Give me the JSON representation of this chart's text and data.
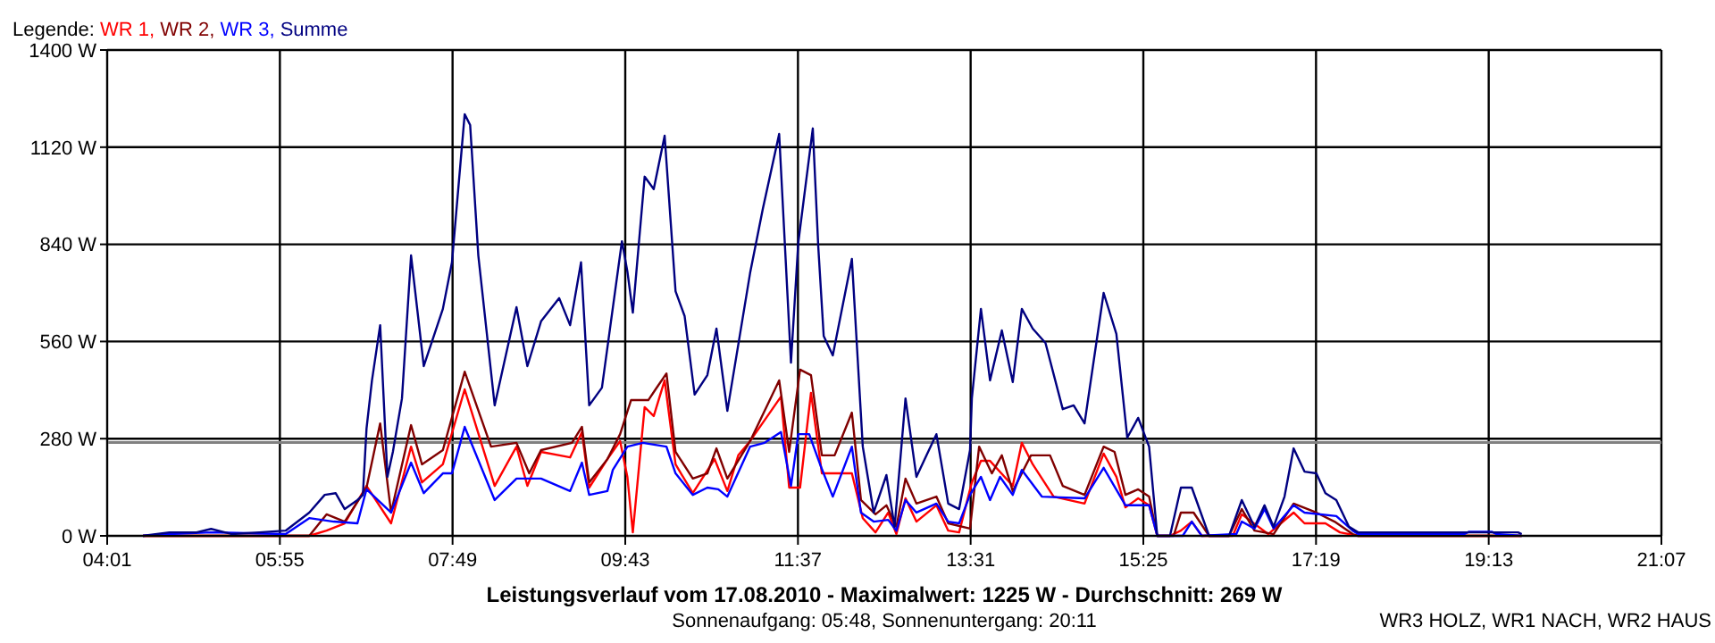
{
  "chart_data": {
    "type": "line",
    "title": "Leistungsverlauf vom 17.08.2010 - Maximalwert: 1225 W - Durchschnitt: 269 W",
    "subtitle": "Sonnenaufgang: 05:48, Sonnenuntergang: 20:11",
    "annotations": [
      "WR3 HOLZ, WR1 NACH, WR2 HAUS"
    ],
    "legend_title": "Legende:",
    "legend": "top left",
    "grid": true,
    "line_style": "solid",
    "xlim": [
      4.0167,
      21.1167
    ],
    "xticks": [
      {
        "value": 4.0167,
        "label": "04:01"
      },
      {
        "value": 5.9167,
        "label": "05:55"
      },
      {
        "value": 7.8167,
        "label": "07:49"
      },
      {
        "value": 9.7167,
        "label": "09:43"
      },
      {
        "value": 11.6167,
        "label": "11:37"
      },
      {
        "value": 13.5167,
        "label": "13:31"
      },
      {
        "value": 15.4167,
        "label": "15:25"
      },
      {
        "value": 17.3167,
        "label": "17:19"
      },
      {
        "value": 19.2167,
        "label": "19:13"
      },
      {
        "value": 21.1167,
        "label": "21:07"
      }
    ],
    "ylim": [
      0,
      1400
    ],
    "yticks": [
      {
        "value": 0,
        "label": "0 W"
      },
      {
        "value": 280,
        "label": "280 W"
      },
      {
        "value": 560,
        "label": "560 W"
      },
      {
        "value": 840,
        "label": "840 W"
      },
      {
        "value": 1120,
        "label": "1120 W"
      },
      {
        "value": 1400,
        "label": "1400 W"
      }
    ],
    "ref_lines": [
      {
        "axis": "y",
        "value": 269,
        "color": "#808080"
      }
    ],
    "series": [
      {
        "name": "WR 1,",
        "color": "#ff0000",
        "x": [
          4.41,
          6.24,
          6.43,
          6.63,
          6.87,
          7.14,
          7.36,
          7.48,
          7.71,
          7.95,
          8.28,
          8.52,
          8.64,
          8.79,
          9.11,
          9.24,
          9.32,
          9.52,
          9.66,
          9.74,
          9.8,
          9.93,
          10.03,
          10.15,
          10.27,
          10.46,
          10.7,
          10.84,
          10.96,
          11.09,
          11.43,
          11.52,
          11.64,
          11.76,
          11.88,
          12.21,
          12.33,
          12.47,
          12.61,
          12.7,
          12.8,
          12.92,
          13.14,
          13.27,
          13.39,
          13.53,
          13.63,
          13.73,
          13.98,
          14.08,
          14.2,
          14.43,
          14.77,
          14.98,
          15.12,
          15.22,
          15.36,
          15.48,
          15.57,
          15.71,
          15.83,
          15.95,
          16.06,
          16.4,
          16.5,
          16.79,
          17.07,
          17.19,
          17.42,
          17.58,
          17.78,
          19.58
        ],
        "values": [
          0,
          0,
          15,
          36,
          144,
          36,
          257,
          154,
          206,
          422,
          144,
          257,
          144,
          242,
          226,
          299,
          139,
          221,
          273,
          170,
          10,
          371,
          345,
          448,
          206,
          123,
          221,
          129,
          232,
          273,
          401,
          139,
          139,
          412,
          180,
          180,
          51,
          10,
          67,
          5,
          108,
          41,
          88,
          15,
          10,
          154,
          216,
          216,
          144,
          268,
          206,
          113,
          93,
          237,
          170,
          82,
          108,
          88,
          0,
          0,
          15,
          41,
          0,
          0,
          62,
          5,
          67,
          36,
          36,
          10,
          0,
          0
        ]
      },
      {
        "name": "WR 2,",
        "color": "#800000",
        "x": [
          4.41,
          6.24,
          6.43,
          6.63,
          6.87,
          7.02,
          7.14,
          7.36,
          7.48,
          7.71,
          7.95,
          8.24,
          8.52,
          8.66,
          8.79,
          9.13,
          9.24,
          9.32,
          9.52,
          9.66,
          9.78,
          9.97,
          10.05,
          10.17,
          10.27,
          10.46,
          10.62,
          10.72,
          10.84,
          11.09,
          11.41,
          11.52,
          11.64,
          11.76,
          11.88,
          12.02,
          12.21,
          12.31,
          12.47,
          12.59,
          12.7,
          12.8,
          12.92,
          13.14,
          13.27,
          13.51,
          13.61,
          13.75,
          13.86,
          13.98,
          14.18,
          14.39,
          14.53,
          14.77,
          14.98,
          15.1,
          15.22,
          15.36,
          15.48,
          15.57,
          15.75,
          15.83,
          15.97,
          16.14,
          16.36,
          16.5,
          16.64,
          16.85,
          17.07,
          17.32,
          17.52,
          17.72,
          17.78,
          19.58
        ],
        "values": [
          0,
          0,
          62,
          41,
          139,
          324,
          67,
          319,
          206,
          247,
          473,
          257,
          268,
          180,
          247,
          268,
          314,
          154,
          221,
          293,
          391,
          391,
          422,
          468,
          242,
          165,
          180,
          252,
          165,
          273,
          448,
          242,
          479,
          463,
          232,
          232,
          355,
          103,
          62,
          88,
          26,
          165,
          93,
          113,
          36,
          21,
          257,
          180,
          232,
          129,
          232,
          232,
          144,
          118,
          257,
          242,
          118,
          134,
          113,
          0,
          0,
          67,
          67,
          0,
          0,
          77,
          15,
          5,
          93,
          67,
          41,
          5,
          0,
          0
        ]
      },
      {
        "name": "WR 3,",
        "color": "#0000ff",
        "x": [
          4.41,
          4.7,
          5.16,
          5.98,
          6.24,
          6.51,
          6.77,
          6.87,
          7.14,
          7.36,
          7.5,
          7.71,
          7.81,
          7.95,
          8.28,
          8.52,
          8.79,
          9.11,
          9.24,
          9.32,
          9.52,
          9.58,
          9.74,
          9.91,
          10.17,
          10.27,
          10.46,
          10.62,
          10.74,
          10.84,
          11.09,
          11.25,
          11.43,
          11.54,
          11.62,
          11.74,
          11.86,
          12.0,
          12.21,
          12.31,
          12.45,
          12.61,
          12.7,
          12.8,
          12.92,
          13.14,
          13.27,
          13.39,
          13.51,
          13.63,
          13.73,
          13.84,
          13.98,
          14.08,
          14.3,
          14.77,
          14.98,
          15.22,
          15.48,
          15.57,
          15.85,
          15.95,
          16.06,
          16.44,
          16.5,
          16.64,
          16.75,
          16.85,
          17.07,
          17.19,
          17.54,
          17.72,
          17.78,
          18.95,
          19.0,
          19.25,
          19.3,
          19.58
        ],
        "values": [
          0,
          5,
          10,
          5,
          51,
          41,
          36,
          134,
          67,
          211,
          123,
          180,
          180,
          314,
          103,
          165,
          165,
          129,
          211,
          118,
          129,
          190,
          257,
          268,
          257,
          180,
          118,
          139,
          134,
          113,
          257,
          268,
          299,
          144,
          293,
          293,
          206,
          113,
          257,
          67,
          41,
          46,
          15,
          103,
          67,
          93,
          41,
          36,
          118,
          170,
          103,
          170,
          118,
          190,
          113,
          108,
          196,
          88,
          88,
          0,
          0,
          41,
          0,
          5,
          41,
          21,
          77,
          21,
          88,
          67,
          57,
          15,
          5,
          5,
          12,
          12,
          5,
          0
        ]
      },
      {
        "name": "Summe",
        "color": "#000080",
        "x": [
          4.41,
          4.7,
          5.0,
          5.16,
          5.39,
          5.69,
          5.98,
          6.24,
          6.41,
          6.53,
          6.63,
          6.77,
          6.83,
          6.87,
          6.93,
          7.02,
          7.1,
          7.16,
          7.26,
          7.36,
          7.5,
          7.71,
          7.81,
          7.95,
          8.01,
          8.1,
          8.28,
          8.52,
          8.64,
          8.79,
          8.99,
          9.11,
          9.23,
          9.32,
          9.46,
          9.68,
          9.74,
          9.8,
          9.93,
          10.03,
          10.15,
          10.27,
          10.37,
          10.48,
          10.62,
          10.72,
          10.84,
          11.09,
          11.23,
          11.41,
          11.54,
          11.62,
          11.78,
          11.84,
          11.9,
          12.0,
          12.21,
          12.33,
          12.45,
          12.59,
          12.68,
          12.8,
          12.92,
          13.14,
          13.27,
          13.39,
          13.51,
          13.53,
          13.63,
          13.73,
          13.86,
          13.98,
          14.08,
          14.2,
          14.34,
          14.53,
          14.65,
          14.77,
          14.98,
          15.12,
          15.24,
          15.36,
          15.48,
          15.57,
          15.71,
          15.83,
          15.95,
          16.14,
          16.36,
          16.5,
          16.64,
          16.75,
          16.85,
          16.97,
          17.07,
          17.19,
          17.32,
          17.42,
          17.54,
          17.68,
          17.78,
          19.54,
          19.58
        ],
        "values": [
          0,
          10,
          10,
          20,
          5,
          10,
          15,
          67,
          118,
          123,
          77,
          103,
          118,
          309,
          448,
          607,
          170,
          242,
          396,
          808,
          489,
          654,
          788,
          1215,
          1184,
          808,
          376,
          659,
          489,
          618,
          685,
          607,
          788,
          376,
          427,
          849,
          762,
          643,
          1035,
          999,
          1153,
          705,
          633,
          407,
          463,
          597,
          360,
          757,
          942,
          1158,
          499,
          844,
          1174,
          834,
          576,
          520,
          798,
          257,
          67,
          175,
          26,
          396,
          170,
          293,
          93,
          77,
          247,
          396,
          654,
          448,
          592,
          443,
          654,
          597,
          556,
          365,
          376,
          324,
          700,
          582,
          283,
          340,
          257,
          0,
          0,
          139,
          139,
          0,
          0,
          103,
          26,
          88,
          26,
          113,
          252,
          185,
          180,
          123,
          103,
          26,
          10,
          10,
          5
        ]
      }
    ]
  }
}
